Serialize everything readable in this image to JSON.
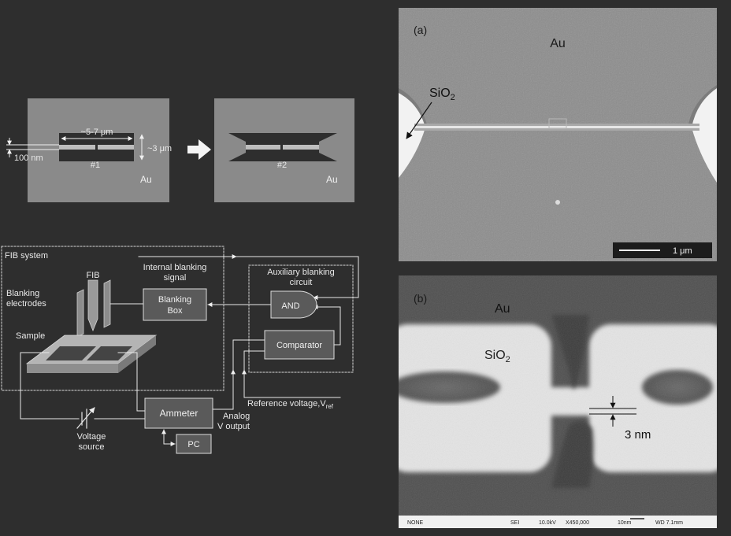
{
  "top_schematic": {
    "dim_length": "~5-7 μm",
    "dim_width": "~3 μm",
    "dim_gap": "100 nm",
    "label_1": "#1",
    "label_2": "#2",
    "au_left": "Au",
    "au_right": "Au"
  },
  "circuit": {
    "fib_system": "FIB system",
    "fib": "FIB",
    "internal_blanking_1": "Internal blanking",
    "internal_blanking_2": "signal",
    "blanking_electrodes_1": "Blanking",
    "blanking_electrodes_2": "electrodes",
    "sample": "Sample",
    "blanking_box_1": "Blanking",
    "blanking_box_2": "Box",
    "aux_1": "Auxiliary blanking",
    "aux_2": "circuit",
    "and_gate": "AND",
    "comparator": "Comparator",
    "ammeter": "Ammeter",
    "pc": "PC",
    "voltage_source_1": "Voltage",
    "voltage_source_2": "source",
    "analog_1": "Analog",
    "analog_2": "V output",
    "reference_voltage": "Reference voltage,V",
    "reference_sub": "ref"
  },
  "panel_a": {
    "tag": "(a)",
    "au": "Au",
    "sio2_main": "SiO",
    "sio2_sub": "2",
    "scale_bar": "1 μm"
  },
  "panel_b": {
    "tag": "(b)",
    "au": "Au",
    "sio2_main": "SiO",
    "sio2_sub": "2",
    "gap": "3 nm",
    "footer_none": "NONE",
    "footer_sei": "SEI",
    "footer_kv": "10.0kV",
    "footer_mag": "X450,000",
    "footer_scale": "10nm",
    "footer_wd": "WD 7.1mm"
  },
  "colors": {
    "background": "#2e2e2e",
    "electrode": "#8a8a8a",
    "sem_a": "#8c8c8c",
    "sem_b_oxide": "#e2e2e2",
    "sem_b_dark": "#505050"
  }
}
